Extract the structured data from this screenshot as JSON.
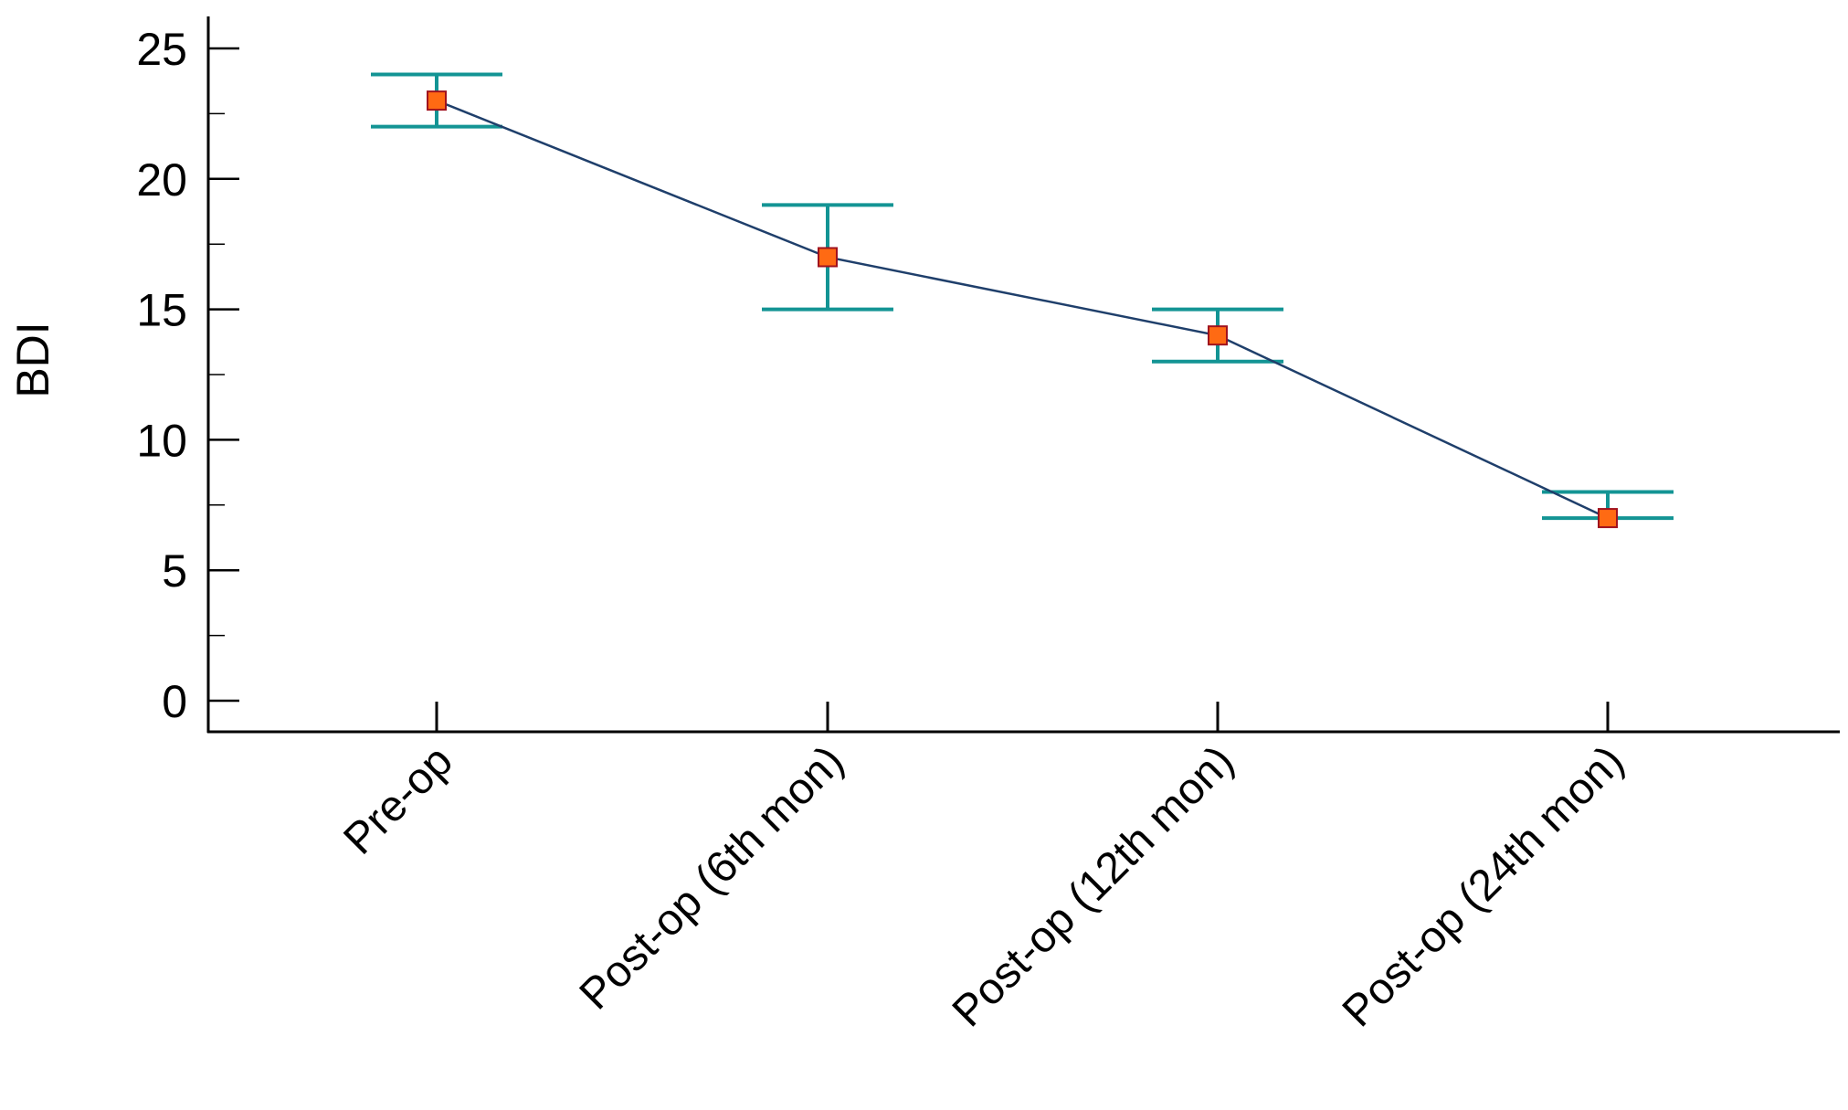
{
  "chart_data": {
    "type": "line",
    "title": "",
    "xlabel": "",
    "ylabel": "BDI",
    "ylim": [
      -1.2,
      26
    ],
    "yticks": [
      0,
      5,
      10,
      15,
      20,
      25
    ],
    "grid": false,
    "legend": "none",
    "categories": [
      "Pre-op",
      "Post-op (6th mon)",
      "Post-op (12th mon)",
      "Post-op (24th mon)"
    ],
    "series": [
      {
        "values": [
          23,
          17,
          14,
          7
        ],
        "error_low": [
          22,
          15,
          13,
          7
        ],
        "error_high": [
          24,
          19,
          15,
          8
        ]
      }
    ]
  },
  "colors": {
    "line": "#1f3f6b",
    "marker_fill": "#ff6a13",
    "marker_stroke": "#a0121e",
    "error_bar": "#139494",
    "axis": "#000000"
  }
}
